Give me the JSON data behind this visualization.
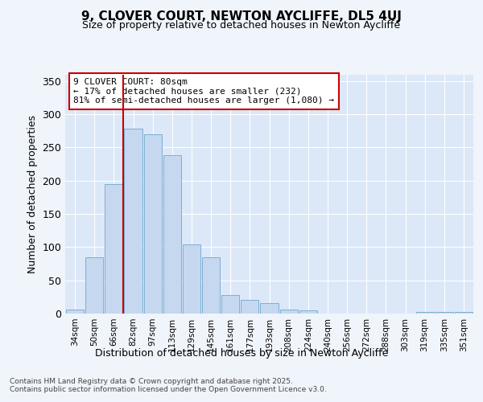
{
  "title1": "9, CLOVER COURT, NEWTON AYCLIFFE, DL5 4UJ",
  "title2": "Size of property relative to detached houses in Newton Aycliffe",
  "xlabel": "Distribution of detached houses by size in Newton Aycliffe",
  "ylabel": "Number of detached properties",
  "categories": [
    "34sqm",
    "50sqm",
    "66sqm",
    "82sqm",
    "97sqm",
    "113sqm",
    "129sqm",
    "145sqm",
    "161sqm",
    "177sqm",
    "193sqm",
    "208sqm",
    "224sqm",
    "240sqm",
    "256sqm",
    "272sqm",
    "288sqm",
    "303sqm",
    "319sqm",
    "335sqm",
    "351sqm"
  ],
  "values": [
    6,
    85,
    195,
    278,
    270,
    238,
    104,
    85,
    28,
    20,
    16,
    6,
    5,
    0,
    0,
    0,
    0,
    0,
    2,
    3,
    3
  ],
  "bar_color": "#c5d8f0",
  "bar_edge_color": "#7bafd4",
  "vline_color": "#cc0000",
  "vline_pos": 2.5,
  "annotation_text": "9 CLOVER COURT: 80sqm\n← 17% of detached houses are smaller (232)\n81% of semi-detached houses are larger (1,080) →",
  "annotation_fontsize": 8,
  "annotation_box_color": "#cc0000",
  "ylim": [
    0,
    360
  ],
  "yticks": [
    0,
    50,
    100,
    150,
    200,
    250,
    300,
    350
  ],
  "footer": "Contains HM Land Registry data © Crown copyright and database right 2025.\nContains public sector information licensed under the Open Government Licence v3.0.",
  "bg_color": "#f0f4fb",
  "plot_bg_color": "#dce8f8",
  "grid_color": "#ffffff",
  "title1_fontsize": 11,
  "title2_fontsize": 9
}
